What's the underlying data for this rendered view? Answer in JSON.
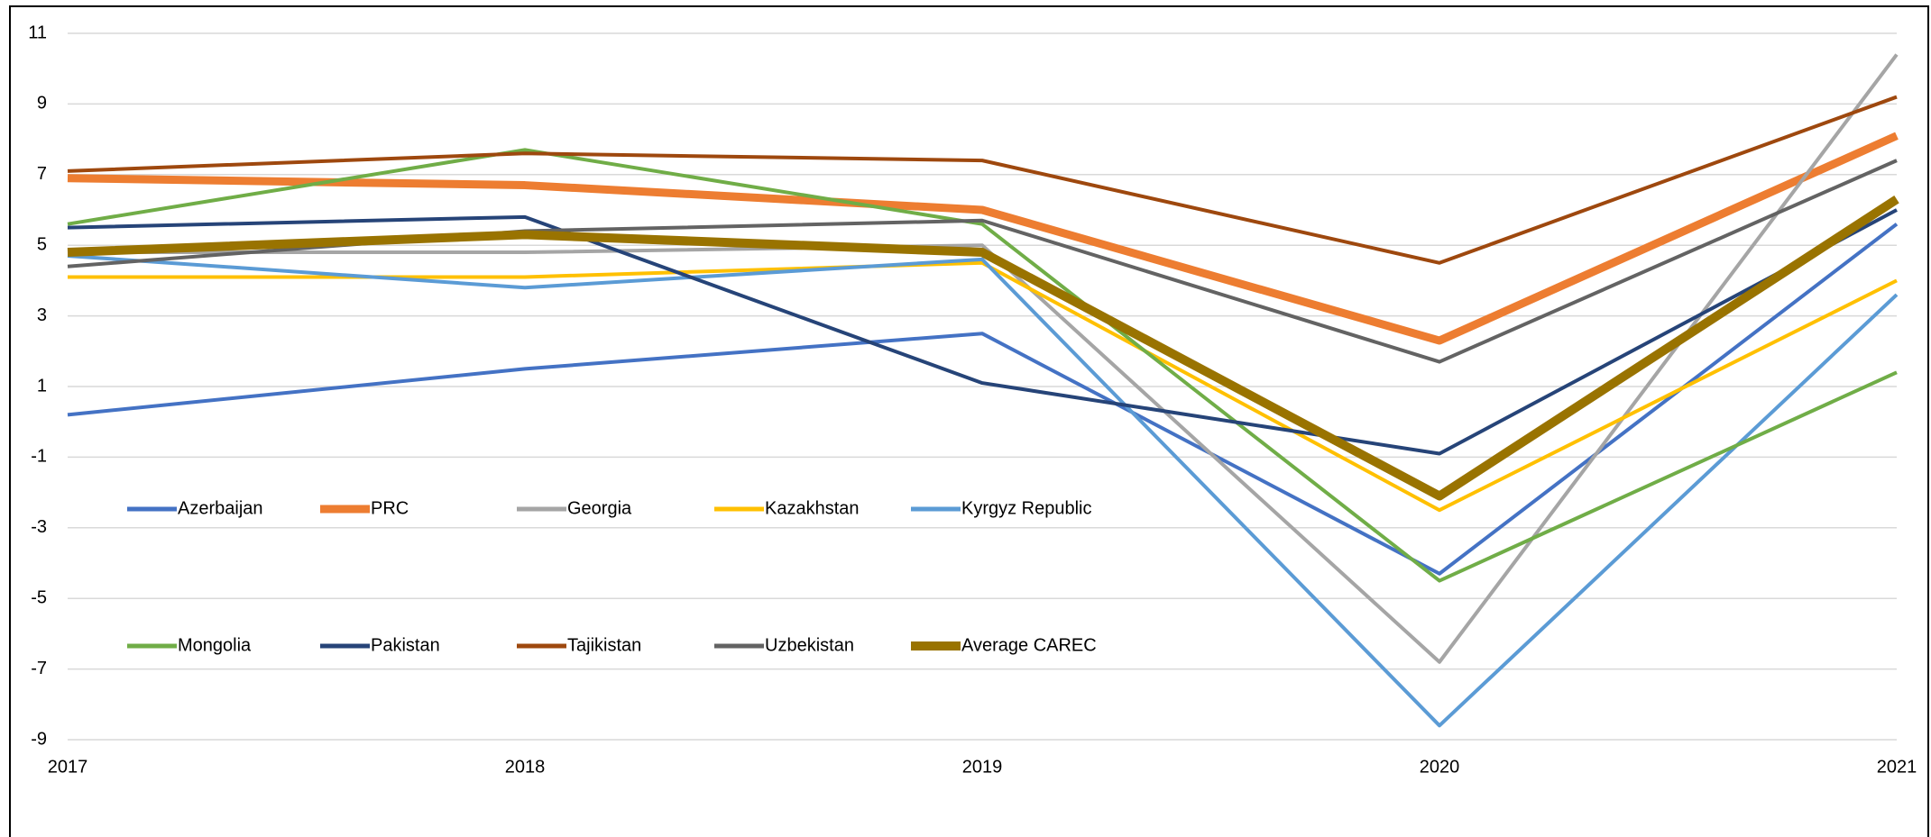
{
  "chart_data": {
    "type": "line",
    "categories": [
      "2017",
      "2018",
      "2019",
      "2020",
      "2021"
    ],
    "ylim": [
      -9,
      11
    ],
    "yticks": [
      -9,
      -7,
      -5,
      -3,
      -1,
      1,
      3,
      5,
      7,
      9,
      11
    ],
    "grid": true,
    "series": [
      {
        "name": "Azerbaijan",
        "color": "#4472c4",
        "values": [
          0.2,
          1.5,
          2.5,
          -4.3,
          5.6
        ]
      },
      {
        "name": "PRC",
        "color": "#ed7d31",
        "values": [
          6.9,
          6.7,
          6.0,
          2.3,
          8.1
        ]
      },
      {
        "name": "Georgia",
        "color": "#a5a5a5",
        "values": [
          4.8,
          4.8,
          5.0,
          -6.8,
          10.4
        ]
      },
      {
        "name": "Kazakhstan",
        "color": "#ffc000",
        "values": [
          4.1,
          4.1,
          4.5,
          -2.5,
          4.0
        ]
      },
      {
        "name": "Kyrgyz Republic",
        "color": "#5b9bd5",
        "values": [
          4.7,
          3.8,
          4.6,
          -8.6,
          3.6
        ]
      },
      {
        "name": "Mongolia",
        "color": "#70ad47",
        "values": [
          5.6,
          7.7,
          5.6,
          -4.5,
          1.4
        ]
      },
      {
        "name": "Pakistan",
        "color": "#264478",
        "values": [
          5.5,
          5.8,
          1.1,
          -0.9,
          6.0
        ]
      },
      {
        "name": "Tajikistan",
        "color": "#9e480e",
        "values": [
          7.1,
          7.6,
          7.4,
          4.5,
          9.2
        ]
      },
      {
        "name": "Uzbekistan",
        "color": "#636363",
        "values": [
          4.4,
          5.4,
          5.7,
          1.7,
          7.4
        ]
      },
      {
        "name": "Average CAREC",
        "color": "#997300",
        "values": [
          4.8,
          5.3,
          4.8,
          -2.1,
          6.3
        ]
      }
    ]
  }
}
